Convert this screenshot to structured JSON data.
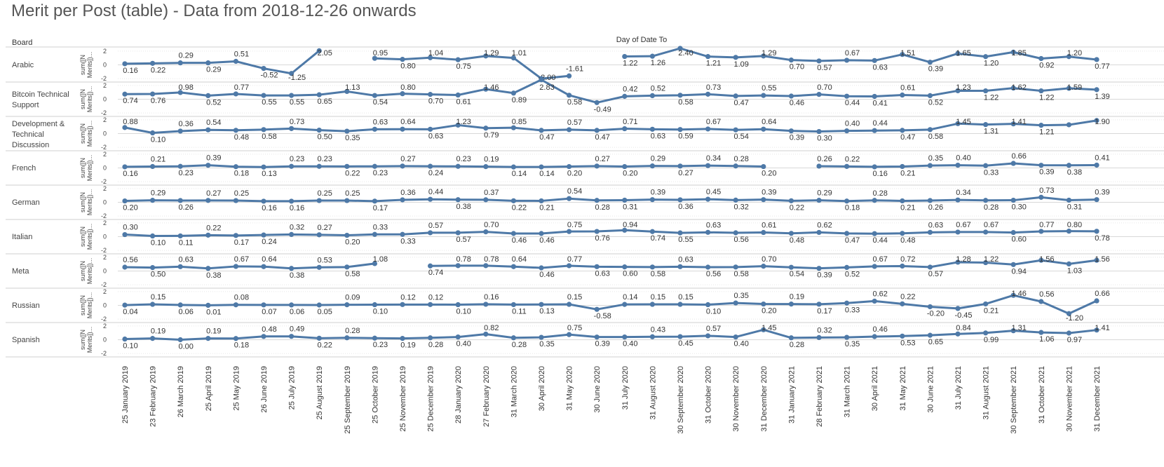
{
  "page": {
    "title": "Merit per Post (table) - Data from 2018-12-26 onwards",
    "row_header": "Board",
    "column_header": "Day of Date To"
  },
  "chart_data": {
    "type": "line",
    "title": "Merit per Post (table) - Data from 2018-12-26 onwards",
    "xlabel": "Day of Date To",
    "ylabel": "sum([N Merits])...",
    "ylim": [
      -2,
      2
    ],
    "yticks": [
      2,
      0,
      -2
    ],
    "grid": true,
    "line_color": "#4e79a7",
    "x": [
      "25 January 2019",
      "23 February 2019",
      "26 March 2019",
      "25 April 2019",
      "25 May 2019",
      "26 June 2019",
      "25 July 2019",
      "25 August 2019",
      "25 September 2019",
      "25 October 2019",
      "25 November 2019",
      "25 December 2019",
      "28 January 2020",
      "27 February 2020",
      "31 March 2020",
      "30 April 2020",
      "31 May 2020",
      "30 June 2020",
      "31 July 2020",
      "31 August 2020",
      "30 September 2020",
      "31 October 2020",
      "30 November 2020",
      "31 December 2020",
      "31 January 2021",
      "28 February 2021",
      "31 March 2021",
      "30 April 2021",
      "31 May 2021",
      "30 June 2021",
      "31 July 2021",
      "31 August 2021",
      "30 September 2021",
      "31 October 2021",
      "30 November 2021",
      "31 December 2021"
    ],
    "series": [
      {
        "name": "Arabic",
        "values": [
          0.16,
          0.22,
          0.29,
          0.29,
          0.51,
          -0.52,
          -1.25,
          2.05,
          null,
          0.95,
          0.8,
          1.04,
          0.75,
          1.29,
          1.01,
          -2.0,
          -1.61,
          null,
          1.22,
          1.26,
          2.4,
          1.21,
          1.09,
          1.29,
          0.7,
          0.57,
          0.67,
          0.63,
          1.51,
          0.39,
          1.65,
          1.2,
          1.85,
          0.92,
          1.2,
          0.77
        ]
      },
      {
        "name": "Bitcoin Technical Support",
        "values": [
          0.74,
          0.76,
          0.98,
          0.52,
          0.77,
          0.55,
          0.55,
          0.65,
          1.13,
          0.54,
          0.8,
          0.7,
          0.61,
          1.46,
          0.89,
          2.83,
          0.58,
          -0.49,
          0.42,
          0.52,
          0.58,
          0.73,
          0.47,
          0.55,
          0.46,
          0.7,
          0.44,
          0.41,
          0.61,
          0.52,
          1.23,
          1.22,
          1.62,
          1.22,
          1.59,
          1.39
        ]
      },
      {
        "name": "Development & Technical Discussion",
        "values": [
          0.88,
          0.1,
          0.36,
          0.54,
          0.48,
          0.58,
          0.73,
          0.5,
          0.35,
          0.63,
          0.64,
          0.63,
          1.23,
          0.79,
          0.85,
          0.47,
          0.57,
          0.47,
          0.71,
          0.63,
          0.59,
          0.67,
          0.54,
          0.64,
          0.39,
          0.3,
          0.4,
          0.44,
          0.47,
          0.58,
          1.45,
          1.31,
          1.41,
          1.21,
          1.28,
          1.9
        ]
      },
      {
        "name": "French",
        "values": [
          0.16,
          0.21,
          0.23,
          0.39,
          0.18,
          0.13,
          0.23,
          0.23,
          0.22,
          0.23,
          0.27,
          0.24,
          0.23,
          0.19,
          0.14,
          0.14,
          0.2,
          0.27,
          0.2,
          0.29,
          0.27,
          0.34,
          0.28,
          0.2,
          null,
          0.26,
          0.22,
          0.16,
          0.21,
          0.35,
          0.4,
          0.33,
          0.66,
          0.39,
          0.38,
          0.41
        ]
      },
      {
        "name": "German",
        "values": [
          0.2,
          0.29,
          0.26,
          0.27,
          0.25,
          0.16,
          0.16,
          0.25,
          0.25,
          0.17,
          0.36,
          0.44,
          0.38,
          0.37,
          0.22,
          0.21,
          0.54,
          0.28,
          0.31,
          0.39,
          0.36,
          0.45,
          0.32,
          0.39,
          0.22,
          0.29,
          0.18,
          0.28,
          0.21,
          0.26,
          0.34,
          0.28,
          0.3,
          0.73,
          0.31,
          0.39
        ]
      },
      {
        "name": "Italian",
        "values": [
          0.3,
          0.1,
          0.11,
          0.22,
          0.17,
          0.24,
          0.32,
          0.27,
          0.2,
          0.33,
          0.33,
          0.57,
          0.57,
          0.7,
          0.46,
          0.46,
          0.75,
          0.76,
          0.94,
          0.74,
          0.55,
          0.63,
          0.56,
          0.61,
          0.48,
          0.62,
          0.47,
          0.44,
          0.48,
          0.63,
          0.67,
          0.67,
          0.6,
          0.77,
          0.8,
          0.78
        ]
      },
      {
        "name": "Meta",
        "values": [
          0.56,
          0.5,
          0.63,
          0.38,
          0.67,
          0.64,
          0.38,
          0.53,
          0.58,
          1.08,
          null,
          0.74,
          0.78,
          0.78,
          0.64,
          0.46,
          0.77,
          0.63,
          0.6,
          0.58,
          0.63,
          0.56,
          0.58,
          0.7,
          0.54,
          0.39,
          0.52,
          0.67,
          0.72,
          0.57,
          1.28,
          1.22,
          0.94,
          1.56,
          1.03,
          1.56
        ]
      },
      {
        "name": "Russian",
        "values": [
          0.04,
          0.15,
          0.06,
          0.01,
          0.08,
          0.07,
          0.06,
          0.05,
          0.09,
          0.1,
          0.12,
          0.12,
          0.1,
          0.16,
          0.11,
          0.13,
          0.15,
          -0.58,
          0.14,
          0.15,
          0.15,
          0.1,
          0.35,
          0.2,
          0.19,
          0.17,
          0.33,
          0.62,
          0.22,
          -0.2,
          -0.45,
          0.21,
          1.46,
          0.56,
          -1.2,
          0.66
        ]
      },
      {
        "name": "Spanish",
        "values": [
          0.1,
          0.19,
          0.0,
          0.19,
          0.18,
          0.48,
          0.49,
          0.22,
          0.28,
          0.23,
          0.19,
          0.28,
          0.4,
          0.82,
          0.28,
          0.35,
          0.75,
          0.39,
          0.4,
          0.43,
          0.45,
          0.57,
          0.4,
          1.45,
          0.28,
          0.32,
          0.35,
          0.46,
          0.53,
          0.65,
          0.84,
          0.99,
          1.31,
          1.06,
          0.97,
          1.41
        ]
      }
    ],
    "labels": [
      [
        "0.16",
        "0.22",
        "0.29",
        "0.29",
        "0.51",
        "-0.52",
        "-1.25",
        "2.05",
        "",
        "0.95",
        "0.80",
        "1.04",
        "0.75",
        "1.29",
        "1.01",
        "-2.00",
        "-1.61",
        "",
        "1.22",
        "1.26",
        "2.40",
        "1.21",
        "1.09",
        "1.29",
        "0.70",
        "0.57",
        "0.67",
        "0.63",
        "1.51",
        "0.39",
        "1.65",
        "1.20",
        "1.85",
        "0.92",
        "1.20",
        "0.77"
      ],
      [
        "0.74",
        "0.76",
        "0.98",
        "0.52",
        "0.77",
        "0.55",
        "0.55",
        "0.65",
        "1.13",
        "0.54",
        "0.80",
        "0.70",
        "0.61",
        "1.46",
        "0.89",
        "2.83",
        "0.58",
        "-0.49",
        "0.42",
        "0.52",
        "0.58",
        "0.73",
        "0.47",
        "0.55",
        "0.46",
        "0.70",
        "0.44",
        "0.41",
        "0.61",
        "0.52",
        "1.23",
        "1.22",
        "1.62",
        "1.22",
        "1.59",
        "1.39"
      ],
      [
        "0.88",
        "0.10",
        "0.36",
        "0.54",
        "0.48",
        "0.58",
        "0.73",
        "0.50",
        "0.35",
        "0.63",
        "0.64",
        "0.63",
        "1.23",
        "0.79",
        "0.85",
        "0.47",
        "0.57",
        "0.47",
        "0.71",
        "0.63",
        "0.59",
        "0.67",
        "0.54",
        "0.64",
        "0.39",
        "0.30",
        "0.40",
        "0.44",
        "0.47",
        "0.58",
        "1.45",
        "1.31",
        "1.41",
        "1.21",
        "",
        "1.90"
      ],
      [
        "0.16",
        "0.21",
        "0.23",
        "0.39",
        "0.18",
        "0.13",
        "0.23",
        "0.23",
        "0.22",
        "0.23",
        "0.27",
        "0.24",
        "0.23",
        "0.19",
        "0.14",
        "0.14",
        "0.20",
        "0.27",
        "0.20",
        "0.29",
        "0.27",
        "0.34",
        "0.28",
        "0.20",
        "",
        "0.26",
        "0.22",
        "0.16",
        "0.21",
        "0.35",
        "0.40",
        "0.33",
        "0.66",
        "0.39",
        "0.38",
        "0.41"
      ],
      [
        "0.20",
        "0.29",
        "0.26",
        "0.27",
        "0.25",
        "0.16",
        "0.16",
        "0.25",
        "0.25",
        "0.17",
        "0.36",
        "0.44",
        "0.38",
        "0.37",
        "0.22",
        "0.21",
        "0.54",
        "0.28",
        "0.31",
        "0.39",
        "0.36",
        "0.45",
        "0.32",
        "0.39",
        "0.22",
        "0.29",
        "0.18",
        "0.28",
        "0.21",
        "0.26",
        "0.34",
        "0.28",
        "0.30",
        "0.73",
        "0.31",
        "0.39"
      ],
      [
        "0.30",
        "0.10",
        "0.11",
        "0.22",
        "0.17",
        "0.24",
        "0.32",
        "0.27",
        "0.20",
        "0.33",
        "0.33",
        "0.57",
        "0.57",
        "0.70",
        "0.46",
        "0.46",
        "0.75",
        "0.76",
        "0.94",
        "0.74",
        "0.55",
        "0.63",
        "0.56",
        "0.61",
        "0.48",
        "0.62",
        "0.47",
        "0.44",
        "0.48",
        "0.63",
        "0.67",
        "0.67",
        "0.60",
        "0.77",
        "0.80",
        "0.78"
      ],
      [
        "0.56",
        "0.50",
        "0.63",
        "0.38",
        "0.67",
        "0.64",
        "0.38",
        "0.53",
        "0.58",
        "1.08",
        "",
        "0.74",
        "0.78",
        "0.78",
        "0.64",
        "0.46",
        "0.77",
        "0.63",
        "0.60",
        "0.58",
        "0.63",
        "0.56",
        "0.58",
        "0.70",
        "0.54",
        "0.39",
        "0.52",
        "0.67",
        "0.72",
        "0.57",
        "1.28",
        "1.22",
        "0.94",
        "1.56",
        "1.03",
        "1.56"
      ],
      [
        "0.04",
        "0.15",
        "0.06",
        "0.01",
        "0.08",
        "0.07",
        "0.06",
        "0.05",
        "0.09",
        "0.10",
        "0.12",
        "0.12",
        "0.10",
        "0.16",
        "0.11",
        "0.13",
        "0.15",
        "-0.58",
        "0.14",
        "0.15",
        "0.15",
        "0.10",
        "0.35",
        "0.20",
        "0.19",
        "0.17",
        "0.33",
        "0.62",
        "0.22",
        "-0.20",
        "-0.45",
        "0.21",
        "1.46",
        "0.56",
        "-1.20",
        "0.66"
      ],
      [
        "0.10",
        "0.19",
        "0.00",
        "0.19",
        "0.18",
        "0.48",
        "0.49",
        "0.22",
        "0.28",
        "0.23",
        "0.19",
        "0.28",
        "0.40",
        "0.82",
        "0.28",
        "0.35",
        "0.75",
        "0.39",
        "0.40",
        "0.43",
        "0.45",
        "0.57",
        "0.40",
        "1.45",
        "0.28",
        "0.32",
        "0.35",
        "0.46",
        "0.53",
        "0.65",
        "0.84",
        "0.99",
        "1.31",
        "1.06",
        "0.97",
        "1.41"
      ]
    ],
    "board_labels": [
      [
        "Arabic"
      ],
      [
        "Bitcoin Technical",
        "Support"
      ],
      [
        "Development &",
        "Technical",
        "Discussion"
      ],
      [
        "French"
      ],
      [
        "German"
      ],
      [
        "Italian"
      ],
      [
        "Meta"
      ],
      [
        "Russian"
      ],
      [
        "Spanish"
      ]
    ],
    "axis_title_lines": [
      "sum([N",
      "Merits])..."
    ]
  }
}
